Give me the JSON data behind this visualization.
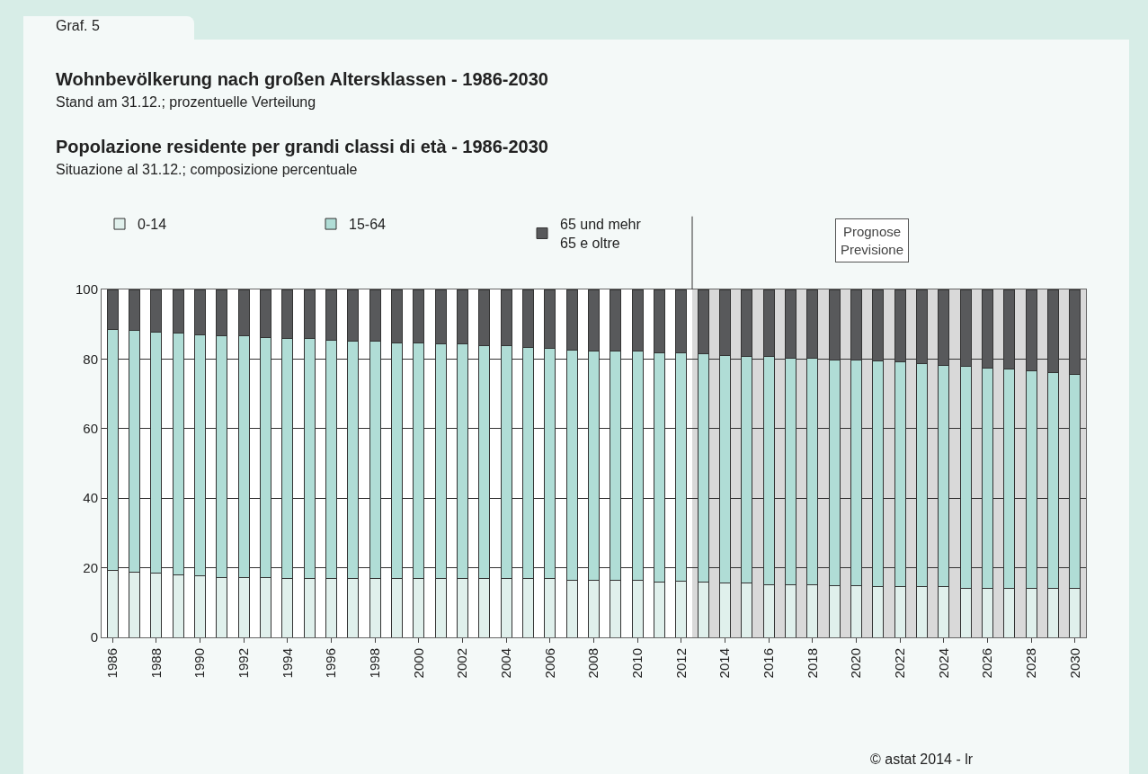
{
  "chart_data": {
    "type": "bar",
    "title": "Wohnbevölkerung nach großen Altersklassen - 1986-2030",
    "subtitle": "Stand am 31.12.; prozentuelle Verteilung",
    "annotations": [
      "Graf. 5",
      "Popolazione residente per grandi classi di età - 1986-2030",
      "Situazione al 31.12.; composizione percentuale",
      "© astat 2014 - lr"
    ],
    "x": [
      1986,
      1987,
      1988,
      1989,
      1990,
      1991,
      1992,
      1993,
      1994,
      1995,
      1996,
      1997,
      1998,
      1999,
      2000,
      2001,
      2002,
      2003,
      2004,
      2005,
      2006,
      2007,
      2008,
      2009,
      2010,
      2011,
      2012,
      2013,
      2014,
      2015,
      2016,
      2017,
      2018,
      2019,
      2020,
      2021,
      2022,
      2023,
      2024,
      2025,
      2026,
      2027,
      2028,
      2029,
      2030
    ],
    "stacked": true,
    "series": [
      {
        "name": "0-14",
        "color": "#e0f0ec",
        "values": [
          19.2,
          18.8,
          18.4,
          18.0,
          17.6,
          17.3,
          17.3,
          17.3,
          16.8,
          16.8,
          16.8,
          16.8,
          16.8,
          16.8,
          16.8,
          16.8,
          16.8,
          16.8,
          16.8,
          16.8,
          16.8,
          16.5,
          16.5,
          16.3,
          16.5,
          16.0,
          16.1,
          15.9,
          15.6,
          15.6,
          15.2,
          15.2,
          15.2,
          14.9,
          14.9,
          14.5,
          14.5,
          14.5,
          14.5,
          14.0,
          14.0,
          14.0,
          14.0,
          14.0,
          14.0
        ]
      },
      {
        "name": "15-64",
        "color": "#b0ddd6",
        "values": [
          69.4,
          69.5,
          69.4,
          69.4,
          69.3,
          69.4,
          69.4,
          68.9,
          69.1,
          69.1,
          68.7,
          68.3,
          68.3,
          67.9,
          67.8,
          67.5,
          67.5,
          67.1,
          67.1,
          66.6,
          66.3,
          66.1,
          65.7,
          65.9,
          65.7,
          65.8,
          65.7,
          65.6,
          65.5,
          65.1,
          65.5,
          65.1,
          65.1,
          64.9,
          64.9,
          65.0,
          64.6,
          64.2,
          63.7,
          63.9,
          63.4,
          63.1,
          62.7,
          62.0,
          61.5
        ]
      },
      {
        "name": "65 und mehr\n65 e oltre",
        "color": "#58595b",
        "values": [
          11.4,
          11.7,
          12.2,
          12.6,
          13.1,
          13.3,
          13.3,
          13.8,
          14.1,
          14.1,
          14.5,
          14.9,
          14.9,
          15.3,
          15.4,
          15.7,
          15.7,
          16.1,
          16.1,
          16.6,
          16.9,
          17.4,
          17.8,
          17.8,
          17.8,
          18.2,
          18.2,
          18.5,
          18.9,
          19.3,
          19.3,
          19.7,
          19.7,
          20.2,
          20.2,
          20.5,
          20.9,
          21.3,
          21.8,
          22.1,
          22.6,
          22.9,
          23.3,
          24.0,
          24.5
        ]
      }
    ],
    "xlim": [
      1985.5,
      2030.5
    ],
    "xticks": [
      1986,
      1988,
      1990,
      1992,
      1994,
      1996,
      1998,
      2000,
      2002,
      2004,
      2006,
      2008,
      2010,
      2012,
      2014,
      2016,
      2018,
      2020,
      2022,
      2024,
      2026,
      2028,
      2030
    ],
    "ylim": [
      0,
      100
    ],
    "yticks": [
      0,
      20,
      40,
      60,
      80,
      100
    ],
    "grid": "y",
    "legend": "top left",
    "bands": [
      {
        "axis": "x",
        "from": 2012.5,
        "to": 2030.5,
        "label": "Prognose\nPrevisione",
        "color": "#d9d9d9"
      }
    ]
  }
}
